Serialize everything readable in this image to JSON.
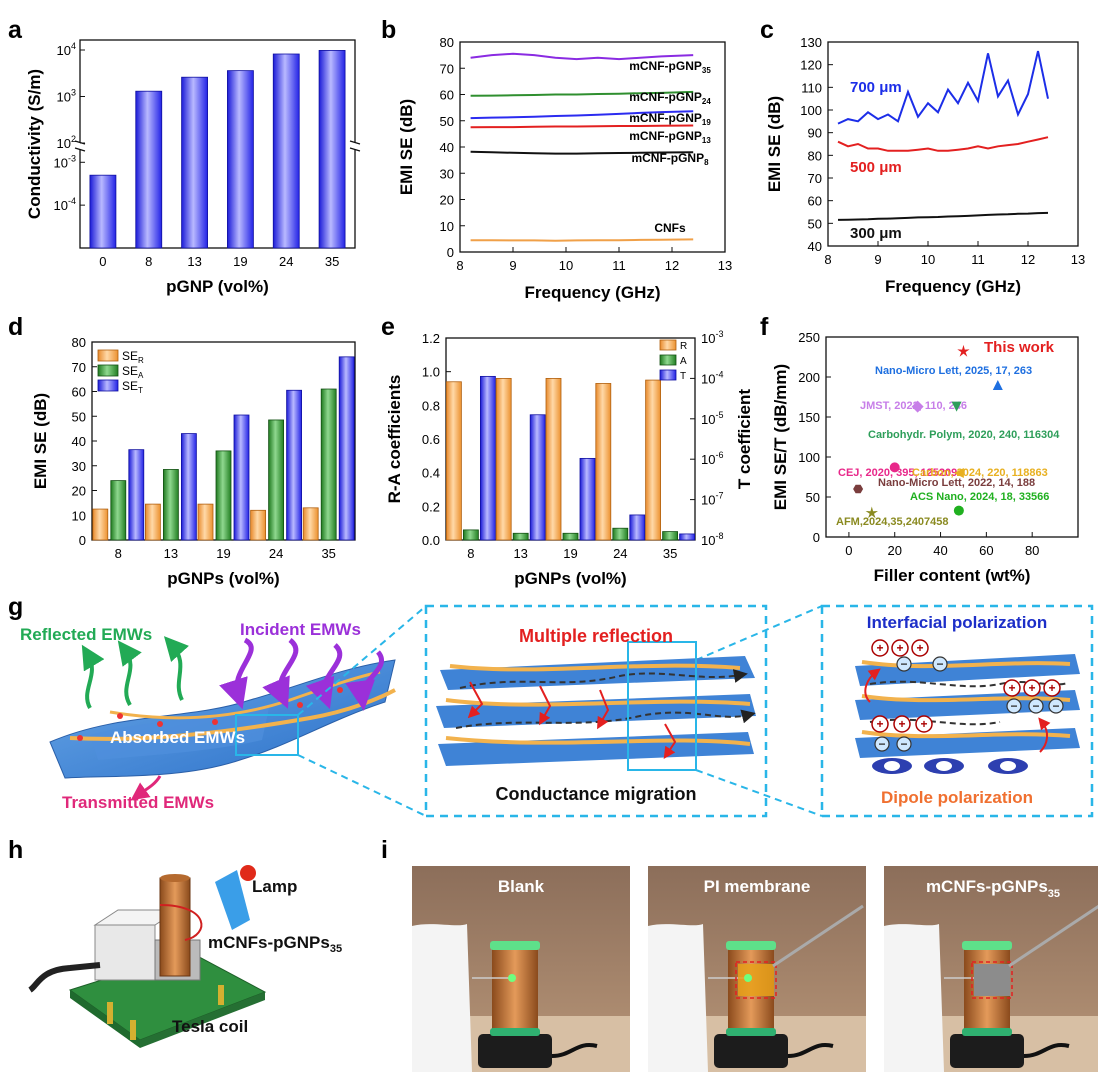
{
  "colors": {
    "blue": "#2b2bf0",
    "orange": "#f0a048",
    "green": "#2f8f2f",
    "purple": "#8a2be2",
    "red": "#e32020",
    "black": "#111111",
    "dash": "#29b6e8"
  },
  "panels": {
    "a": "a",
    "b": "b",
    "c": "c",
    "d": "d",
    "e": "e",
    "f": "f",
    "g": "g",
    "h": "h",
    "i": "i"
  },
  "chart_data": [
    {
      "id": "a",
      "type": "bar",
      "title": "",
      "xlabel": "pGNP (vol%)",
      "ylabel": "Conductivity (S/m)",
      "categories": [
        "0",
        "8",
        "13",
        "19",
        "24",
        "35"
      ],
      "values": [
        0.0005,
        1300,
        2600,
        3600,
        8200,
        9800
      ],
      "yscale": "broken-log",
      "lower_ticks": [
        "10-3",
        "10-4"
      ],
      "upper_ticks": [
        "103",
        "104",
        "102"
      ]
    },
    {
      "id": "b",
      "type": "line",
      "xlabel": "Frequency (GHz)",
      "ylabel": "EMI SE (dB)",
      "xlim": [
        8,
        13
      ],
      "ylim": [
        0,
        80
      ],
      "xticks": [
        "8",
        "9",
        "10",
        "11",
        "12",
        "13"
      ],
      "yticks": [
        "0",
        "10",
        "20",
        "30",
        "40",
        "50",
        "60",
        "70",
        "80"
      ],
      "x": [
        8.2,
        8.6,
        9.0,
        9.4,
        9.8,
        10.2,
        10.6,
        11.0,
        11.4,
        11.8,
        12.4
      ],
      "series": [
        {
          "name": "mCNF-pGNP",
          "sub": "35",
          "values": [
            74,
            75,
            75.5,
            75,
            74,
            73.5,
            74,
            73.5,
            74,
            74.5,
            75
          ]
        },
        {
          "name": "mCNF-pGNP",
          "sub": "24",
          "values": [
            59.5,
            59.6,
            59.7,
            59.8,
            60,
            60,
            60.2,
            60.3,
            60.5,
            60.6,
            61
          ]
        },
        {
          "name": "mCNF-pGNP",
          "sub": "19",
          "values": [
            51,
            51.2,
            51.3,
            51.5,
            51.8,
            52,
            52.3,
            52.6,
            53,
            53.3,
            53.6
          ]
        },
        {
          "name": "mCNF-pGNP",
          "sub": "13",
          "values": [
            47.5,
            47.6,
            47.6,
            47.7,
            47.8,
            47.8,
            47.9,
            48,
            48,
            48.1,
            48.2
          ]
        },
        {
          "name": "mCNF-pGNP",
          "sub": "8",
          "values": [
            38.2,
            38.0,
            37.8,
            37.6,
            37.5,
            37.5,
            37.6,
            37.7,
            37.8,
            37.9,
            38
          ]
        },
        {
          "name": "CNFs",
          "sub": "",
          "values": [
            4.5,
            4.5,
            4.4,
            4.4,
            4.3,
            4.4,
            4.5,
            4.5,
            4.6,
            4.7,
            4.8
          ]
        }
      ]
    },
    {
      "id": "c",
      "type": "line",
      "xlabel": "Frequency (GHz)",
      "ylabel": "EMI SE (dB)",
      "xlim": [
        8,
        13
      ],
      "ylim": [
        40,
        130
      ],
      "xticks": [
        "8",
        "9",
        "10",
        "11",
        "12",
        "13"
      ],
      "yticks": [
        "40",
        "50",
        "60",
        "70",
        "80",
        "90",
        "100",
        "110",
        "120",
        "130"
      ],
      "x": [
        8.2,
        8.4,
        8.6,
        8.8,
        9.0,
        9.2,
        9.4,
        9.6,
        9.8,
        10.0,
        10.2,
        10.4,
        10.6,
        10.8,
        11.0,
        11.2,
        11.4,
        11.6,
        11.8,
        12.0,
        12.2,
        12.4
      ],
      "series": [
        {
          "name": "700 μm",
          "values": [
            94,
            96,
            95,
            99,
            96,
            98,
            95,
            108,
            97,
            103,
            99,
            109,
            103,
            112,
            104,
            125,
            106,
            113,
            98,
            107,
            126,
            105
          ]
        },
        {
          "name": "500 μm",
          "values": [
            86,
            84,
            85,
            83,
            83,
            82,
            82,
            82,
            82.5,
            83,
            82,
            82,
            82.5,
            83,
            84,
            83,
            84,
            84.5,
            85,
            86,
            87,
            88
          ]
        },
        {
          "name": "300 μm",
          "values": [
            51.5,
            51.6,
            51.7,
            51.8,
            52,
            52.1,
            52.2,
            52.4,
            52.6,
            52.7,
            52.8,
            53,
            53.1,
            53.3,
            53.5,
            53.7,
            53.9,
            54,
            54.2,
            54.3,
            54.5,
            54.6
          ]
        }
      ]
    },
    {
      "id": "d",
      "type": "bar",
      "xlabel": "pGNPs (vol%)",
      "ylabel": "EMI SE (dB)",
      "ylim": [
        0,
        80
      ],
      "yticks": [
        "0",
        "10",
        "20",
        "30",
        "40",
        "50",
        "60",
        "70",
        "80"
      ],
      "categories": [
        "8",
        "13",
        "19",
        "24",
        "35"
      ],
      "series": [
        {
          "name": "SE",
          "sub": "R",
          "values": [
            12.5,
            14.5,
            14.5,
            12,
            13
          ]
        },
        {
          "name": "SE",
          "sub": "A",
          "values": [
            24,
            28.5,
            36,
            48.5,
            61
          ]
        },
        {
          "name": "SE",
          "sub": "T",
          "values": [
            36.5,
            43,
            50.5,
            60.5,
            74
          ]
        }
      ]
    },
    {
      "id": "e",
      "type": "bar",
      "xlabel": "pGNPs (vol%)",
      "ylabel": "R-A coefficients",
      "ylabel2": "T coefficient",
      "ylim": [
        0,
        1.2
      ],
      "yticks": [
        "0.0",
        "0.2",
        "0.4",
        "0.6",
        "0.8",
        "1.0",
        "1.2"
      ],
      "y2ticks": [
        "10-3",
        "10-4",
        "10-5",
        "10-6",
        "10-7",
        "10-8"
      ],
      "categories": [
        "8",
        "13",
        "19",
        "24",
        "35"
      ],
      "series": [
        {
          "name": "R",
          "values": [
            0.94,
            0.96,
            0.96,
            0.93,
            0.95
          ]
        },
        {
          "name": "A",
          "values": [
            0.06,
            0.04,
            0.04,
            0.07,
            0.05
          ]
        },
        {
          "name": "T",
          "log10_values": [
            -3.95,
            -4.9,
            -5.98,
            -7.38,
            -7.85
          ]
        }
      ]
    },
    {
      "id": "f",
      "type": "scatter",
      "xlabel": "Filler content (wt%)",
      "ylabel": "EMI SE/T (dB/mm)",
      "xlim": [
        -10,
        100
      ],
      "ylim": [
        0,
        250
      ],
      "xticks": [
        "0",
        "20",
        "40",
        "60",
        "80"
      ],
      "yticks": [
        "0",
        "50",
        "100",
        "150",
        "200",
        "250"
      ],
      "points": [
        {
          "label": "This work",
          "x": 50,
          "y": 232,
          "color": "#e32020",
          "marker": "star"
        },
        {
          "label": "Nano-Micro Lett, 2025, 17, 263",
          "x": 65,
          "y": 190,
          "color": "#1e6fe0",
          "marker": "triangle-up"
        },
        {
          "label": "JMST, 2022, 110, 246",
          "x": 30,
          "y": 163,
          "color": "#c77ee8",
          "marker": "diamond"
        },
        {
          "label": "Carbohydr. Polym, 2020, 240, 116304",
          "x": 47,
          "y": 163,
          "color": "#2e9e5a",
          "marker": "triangle-down"
        },
        {
          "label": "CEJ, 2020, 395, 125209",
          "x": 20,
          "y": 87,
          "color": "#e8288a",
          "marker": "circle"
        },
        {
          "label": "Carbon, 2024, 220, 118863",
          "x": 48,
          "y": 80,
          "color": "#e8b020",
          "marker": "triangle-left"
        },
        {
          "label": "Nano-Micro Lett, 2022, 14, 188",
          "x": 4,
          "y": 60,
          "color": "#7a3d3d",
          "marker": "hexagon"
        },
        {
          "label": "ACS Nano, 2024, 18, 33566",
          "x": 48,
          "y": 33,
          "color": "#20b020",
          "marker": "circle"
        },
        {
          "label": "AFM,2024,35,2407458",
          "x": 10,
          "y": 30,
          "color": "#8a8a20",
          "marker": "star"
        }
      ]
    }
  ],
  "schematic": {
    "reflected": "Reflected EMWs",
    "incident": "Incident EMWs",
    "absorbed": "Absorbed EMWs",
    "transmitted": "Transmitted EMWs",
    "multiple": "Multiple reflection",
    "conductance": "Conductance migration",
    "interfacial": "Interfacial polarization",
    "dipole": "Dipole polarization"
  },
  "demo": {
    "lamp": "Lamp",
    "sample": "mCNFs-pGNPs",
    "sample_sub": "35",
    "coil": "Tesla coil",
    "photos": [
      {
        "label": "Blank",
        "sub": ""
      },
      {
        "label": "PI membrane",
        "sub": ""
      },
      {
        "label": "mCNFs-pGNPs",
        "sub": "35"
      }
    ]
  }
}
